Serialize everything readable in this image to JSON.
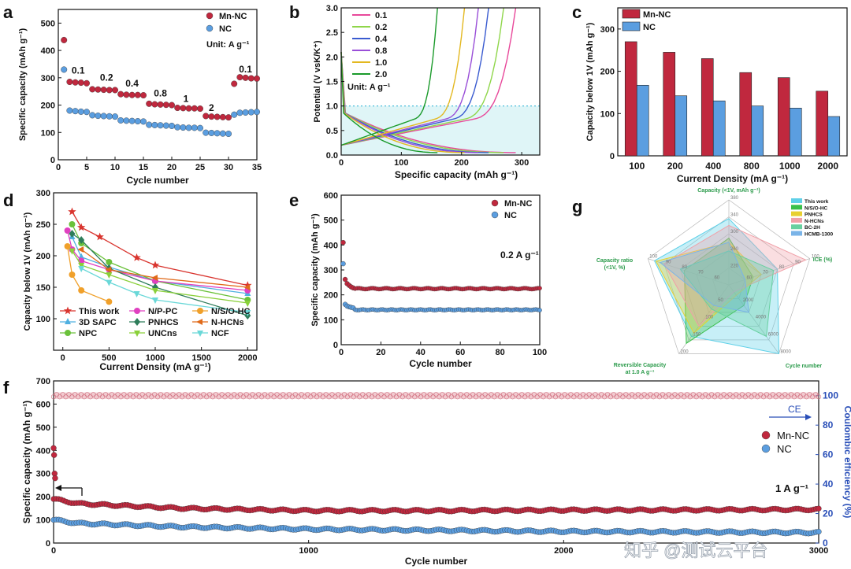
{
  "colors": {
    "mn": "#c0283e",
    "nc": "#5b9ee0",
    "ce": "#2a4fb8"
  },
  "chart_data": [
    {
      "id": "a",
      "panel_label": "a",
      "type": "scatter",
      "xlabel": "Cycle number",
      "ylabel": "Specific capacity (mAh g⁻¹)",
      "xlim": [
        0,
        35
      ],
      "ylim": [
        0,
        550
      ],
      "xticks": [
        "0",
        "5",
        "10",
        "15",
        "20",
        "25",
        "30",
        "35"
      ],
      "yticks": [
        "0",
        "100",
        "200",
        "300",
        "400",
        "500"
      ],
      "legend": [
        "Mn-NC",
        "NC"
      ],
      "unit_note": "Unit: A g⁻¹",
      "rate_labels": [
        {
          "text": "0.1",
          "x": 3.5,
          "y": 315
        },
        {
          "text": "0.2",
          "x": 8.5,
          "y": 290
        },
        {
          "text": "0.4",
          "x": 13,
          "y": 268
        },
        {
          "text": "0.8",
          "x": 18,
          "y": 232
        },
        {
          "text": "1",
          "x": 22.5,
          "y": 212
        },
        {
          "text": "2",
          "x": 27,
          "y": 178
        },
        {
          "text": "0.1",
          "x": 33,
          "y": 320
        }
      ],
      "series": [
        {
          "name": "Mn-NC",
          "x": [
            1,
            2,
            3,
            4,
            5,
            6,
            7,
            8,
            9,
            10,
            11,
            12,
            13,
            14,
            15,
            16,
            17,
            18,
            19,
            20,
            21,
            22,
            23,
            24,
            25,
            26,
            27,
            28,
            29,
            30,
            31,
            32,
            33,
            34,
            35
          ],
          "values": [
            438,
            285,
            283,
            282,
            280,
            258,
            257,
            256,
            255,
            255,
            240,
            238,
            237,
            237,
            236,
            205,
            203,
            202,
            201,
            200,
            190,
            189,
            188,
            188,
            187,
            160,
            158,
            157,
            156,
            155,
            278,
            302,
            300,
            298,
            297
          ]
        },
        {
          "name": "NC",
          "x": [
            1,
            2,
            3,
            4,
            5,
            6,
            7,
            8,
            9,
            10,
            11,
            12,
            13,
            14,
            15,
            16,
            17,
            18,
            19,
            20,
            21,
            22,
            23,
            24,
            25,
            26,
            27,
            28,
            29,
            30,
            31,
            32,
            33,
            34,
            35
          ],
          "values": [
            330,
            180,
            178,
            176,
            175,
            163,
            161,
            160,
            159,
            158,
            144,
            143,
            142,
            141,
            140,
            128,
            127,
            126,
            125,
            124,
            119,
            118,
            117,
            117,
            116,
            99,
            98,
            97,
            96,
            95,
            165,
            172,
            173,
            174,
            175
          ]
        }
      ]
    },
    {
      "id": "b",
      "panel_label": "b",
      "type": "line",
      "xlabel": "Specific capacity (mAh g⁻¹)",
      "ylabel": "Potential (V vsK/K⁺)",
      "xlim": [
        0,
        330
      ],
      "ylim": [
        0,
        3.0
      ],
      "xticks": [
        "0",
        "100",
        "200",
        "300"
      ],
      "yticks": [
        "0.0",
        "0.5",
        "1.0",
        "1.5",
        "2.0",
        "2.5",
        "3.0"
      ],
      "unit_note": "Unit: A g⁻¹",
      "reference_line": 1.0,
      "series": [
        {
          "name": "0.1",
          "color": "#e8489a",
          "capacity": 290
        },
        {
          "name": "0.2",
          "color": "#8fd64a",
          "capacity": 270
        },
        {
          "name": "0.4",
          "color": "#3a5bd0",
          "capacity": 245
        },
        {
          "name": "0.8",
          "color": "#9a4fd8",
          "capacity": 228
        },
        {
          "name": "1.0",
          "color": "#e3b820",
          "capacity": 205
        },
        {
          "name": "2.0",
          "color": "#1a9a2a",
          "capacity": 160
        }
      ]
    },
    {
      "id": "c",
      "panel_label": "c",
      "type": "bar",
      "xlabel": "Current Density (mA g⁻¹)",
      "ylabel": "Capacity below 1V (mAh g⁻¹)",
      "ylim": [
        0,
        350
      ],
      "yticks": [
        "0",
        "100",
        "200",
        "300"
      ],
      "categories": [
        "100",
        "200",
        "400",
        "800",
        "1000",
        "2000"
      ],
      "series": [
        {
          "name": "Mn-NC",
          "values": [
            270,
            245,
            230,
            197,
            185,
            153
          ]
        },
        {
          "name": "NC",
          "values": [
            167,
            142,
            130,
            118,
            113,
            93
          ]
        }
      ]
    },
    {
      "id": "d",
      "panel_label": "d",
      "type": "line",
      "xlabel": "Current Density (mA g⁻¹)",
      "ylabel": "Capacity below 1V (mAh g⁻¹)",
      "xlim": [
        -100,
        2100
      ],
      "ylim": [
        50,
        300
      ],
      "xticks": [
        "0",
        "500",
        "1000",
        "1500",
        "2000"
      ],
      "yticks": [
        "100",
        "150",
        "200",
        "250",
        "300"
      ],
      "series": [
        {
          "name": "This work",
          "color": "#d9352f",
          "marker": "star",
          "x": [
            100,
            200,
            400,
            800,
            1000,
            2000
          ],
          "values": [
            270,
            245,
            230,
            197,
            185,
            153
          ]
        },
        {
          "name": "3D SAPC",
          "color": "#4fb0e0",
          "marker": "tri",
          "x": [
            100,
            200,
            500,
            1000,
            2000
          ],
          "values": [
            230,
            198,
            182,
            160,
            140
          ]
        },
        {
          "name": "NPC",
          "color": "#6ac13a",
          "marker": "circle",
          "x": [
            100,
            200,
            500,
            1000,
            2000
          ],
          "values": [
            250,
            220,
            190,
            160,
            130
          ]
        },
        {
          "name": "N/P-PC",
          "color": "#e040c0",
          "marker": "circle",
          "x": [
            50,
            100,
            200,
            500,
            1000,
            2000
          ],
          "values": [
            240,
            210,
            192,
            178,
            160,
            145
          ]
        },
        {
          "name": "PNHCS",
          "color": "#2e7d5a",
          "marker": "diamond",
          "x": [
            100,
            200,
            500,
            1000,
            2000
          ],
          "values": [
            235,
            225,
            180,
            150,
            105
          ]
        },
        {
          "name": "UNCns",
          "color": "#8ad03a",
          "marker": "tri-down",
          "x": [
            100,
            200,
            500,
            1000,
            2000
          ],
          "values": [
            208,
            185,
            170,
            145,
            125
          ]
        },
        {
          "name": "N/S/O-HC",
          "color": "#f0a02a",
          "marker": "circle",
          "x": [
            50,
            100,
            200,
            500
          ],
          "values": [
            215,
            170,
            145,
            127
          ]
        },
        {
          "name": "N-HCNs",
          "color": "#e06a1a",
          "marker": "tri-left",
          "x": [
            200,
            500,
            1000,
            2000
          ],
          "values": [
            210,
            178,
            165,
            150
          ]
        },
        {
          "name": "NCF",
          "color": "#6ad8d8",
          "marker": "tri-down",
          "x": [
            200,
            500,
            800,
            1000,
            2000
          ],
          "values": [
            180,
            158,
            140,
            130,
            110
          ]
        }
      ]
    },
    {
      "id": "e",
      "panel_label": "e",
      "type": "scatter",
      "xlabel": "Cycle number",
      "ylabel": "Specific capacity (mAh g⁻¹)",
      "xlim": [
        0,
        100
      ],
      "ylim": [
        0,
        600
      ],
      "xticks": [
        "0",
        "20",
        "40",
        "60",
        "80",
        "100"
      ],
      "yticks": [
        "0",
        "100",
        "200",
        "300",
        "400",
        "500",
        "600"
      ],
      "legend": [
        "Mn-NC",
        "NC"
      ],
      "rate_note": "0.2 A g⁻¹",
      "series": [
        {
          "name": "Mn-NC",
          "initial": [
            410,
            262,
            245,
            238,
            232,
            228
          ],
          "plateau": 225
        },
        {
          "name": "NC",
          "initial": [
            325,
            162,
            155,
            152,
            150,
            148
          ],
          "plateau": 140
        }
      ]
    },
    {
      "id": "g",
      "panel_label": "g",
      "type": "radar",
      "axes": [
        {
          "label": "Capacity (<1V, mAh g⁻¹)",
          "ticks": [
            "180",
            "220",
            "260",
            "300",
            "340",
            "380"
          ]
        },
        {
          "label": "ICE (%)",
          "ticks": [
            "50",
            "60",
            "70",
            "80",
            "90",
            "100"
          ]
        },
        {
          "label": "Cycle number",
          "ticks": [
            "0",
            "2000",
            "4000",
            "6000",
            "8000"
          ]
        },
        {
          "label": "Reversible Capacity at 1.0 A g⁻¹",
          "ticks": [
            "0",
            "50",
            "100",
            "150",
            "200"
          ]
        },
        {
          "label": "Capacity ratio (<1V, %)",
          "ticks": [
            "50",
            "60",
            "70",
            "80",
            "90",
            "100"
          ]
        }
      ],
      "series": [
        {
          "name": "This work",
          "color": "#5fd0e8",
          "values": [
            0.78,
            0.6,
            1.0,
            0.75,
            0.92
          ]
        },
        {
          "name": "N/S/O-HC",
          "color": "#3ac04a",
          "values": [
            0.55,
            0.3,
            0.3,
            0.85,
            0.55
          ]
        },
        {
          "name": "PNHCS",
          "color": "#e8d030",
          "values": [
            0.5,
            0.4,
            0.15,
            0.7,
            0.9
          ]
        },
        {
          "name": "N-HCNs",
          "color": "#f0a0a8",
          "values": [
            0.7,
            0.95,
            0.1,
            0.6,
            0.8
          ]
        },
        {
          "name": "BC-2H",
          "color": "#68d0a0",
          "values": [
            0.4,
            0.55,
            0.75,
            0.35,
            0.6
          ]
        },
        {
          "name": "HCMB-1300",
          "color": "#7ab4e8",
          "values": [
            0.5,
            0.2,
            0.4,
            0.3,
            0.85
          ]
        }
      ]
    },
    {
      "id": "f",
      "panel_label": "f",
      "type": "scatter",
      "xlabel": "Cycle number",
      "ylabel": "Specific capacity (mAh g⁻¹)",
      "y2label": "Coulombic efficiency (%)",
      "xlim": [
        0,
        3000
      ],
      "ylim": [
        0,
        700
      ],
      "y2lim": [
        0,
        110
      ],
      "xticks": [
        "0",
        "1000",
        "2000",
        "3000"
      ],
      "yticks": [
        "0",
        "100",
        "200",
        "300",
        "400",
        "500",
        "600",
        "700"
      ],
      "y2ticks": [
        "0",
        "20",
        "40",
        "60",
        "80",
        "100"
      ],
      "legend": [
        "Mn-NC",
        "NC"
      ],
      "ce_label": "CE",
      "rate_note": "1 A g⁻¹",
      "series": [
        {
          "name": "Mn-NC",
          "x": [
            0,
            100,
            500,
            1000,
            1500,
            2000,
            2500,
            3000
          ],
          "values": [
            190,
            170,
            150,
            140,
            140,
            142,
            143,
            145
          ]
        },
        {
          "name": "NC",
          "x": [
            0,
            100,
            500,
            1000,
            1500,
            2000,
            2500,
            3000
          ],
          "values": [
            100,
            85,
            70,
            60,
            55,
            50,
            48,
            45
          ]
        },
        {
          "name": "CE",
          "x": [
            0,
            3000
          ],
          "values": [
            100,
            100
          ]
        }
      ]
    }
  ],
  "watermark": "知乎 @测试云平台"
}
